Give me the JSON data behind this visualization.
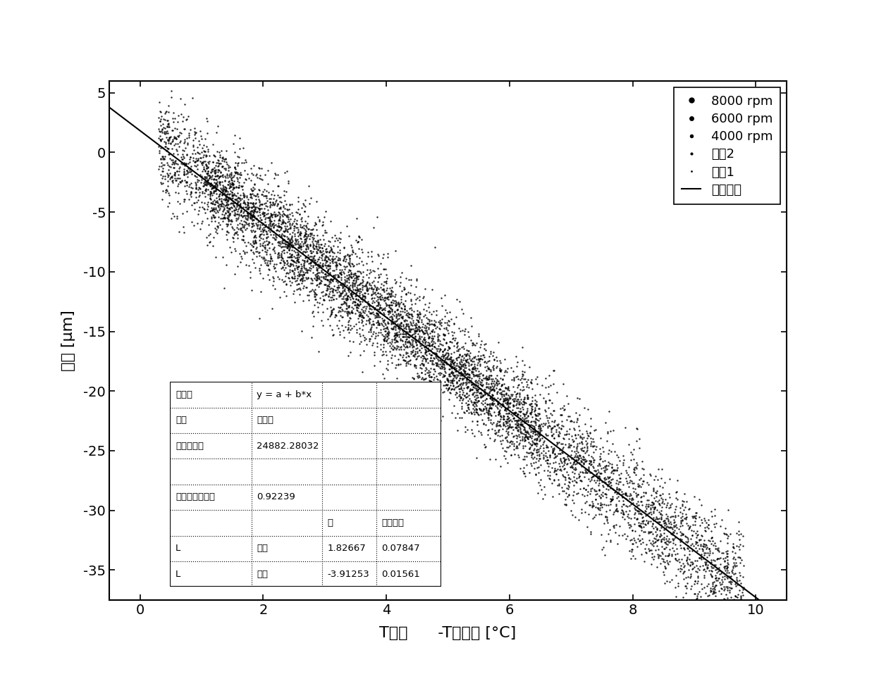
{
  "xlabel_parts": [
    "T前轴",
    "    -T工作台 [",
    "°",
    "C]"
  ],
  "ylabel": "位移 [μm]",
  "xlim": [
    -0.5,
    10.5
  ],
  "ylim": [
    -37.5,
    6
  ],
  "xticks": [
    0,
    2,
    4,
    6,
    8,
    10
  ],
  "yticks": [
    5,
    0,
    -5,
    -10,
    -15,
    -20,
    -25,
    -30,
    -35
  ],
  "intercept": 1.82667,
  "slope": -3.91253,
  "scatter_color": "#000000",
  "line_color": "#000000",
  "n_points": 5000,
  "x_min_data": 0.3,
  "x_max_data": 9.8,
  "noise_std": 2.2,
  "legend_labels": [
    "8000 rpm",
    "6000 rpm",
    "4000 rpm",
    "识别2",
    "识别1",
    "线性拟合"
  ],
  "table_data": {
    "row0": [
      "方程式",
      "y = a + b*x",
      "",
      ""
    ],
    "row1": [
      "权重",
      "不加权",
      "",
      ""
    ],
    "row2": [
      "剩余平方和",
      "24882.28032",
      "",
      ""
    ],
    "row3": [
      "",
      "",
      "",
      ""
    ],
    "row4": [
      "调整的相关系数",
      "0.92239",
      "",
      ""
    ],
    "row5": [
      "",
      "",
      "值",
      "标准误差"
    ],
    "row6": [
      "L",
      "截距",
      "1.82667",
      "0.07847"
    ],
    "row7": [
      "L",
      "斜率",
      "-3.91253",
      "0.01561"
    ]
  }
}
